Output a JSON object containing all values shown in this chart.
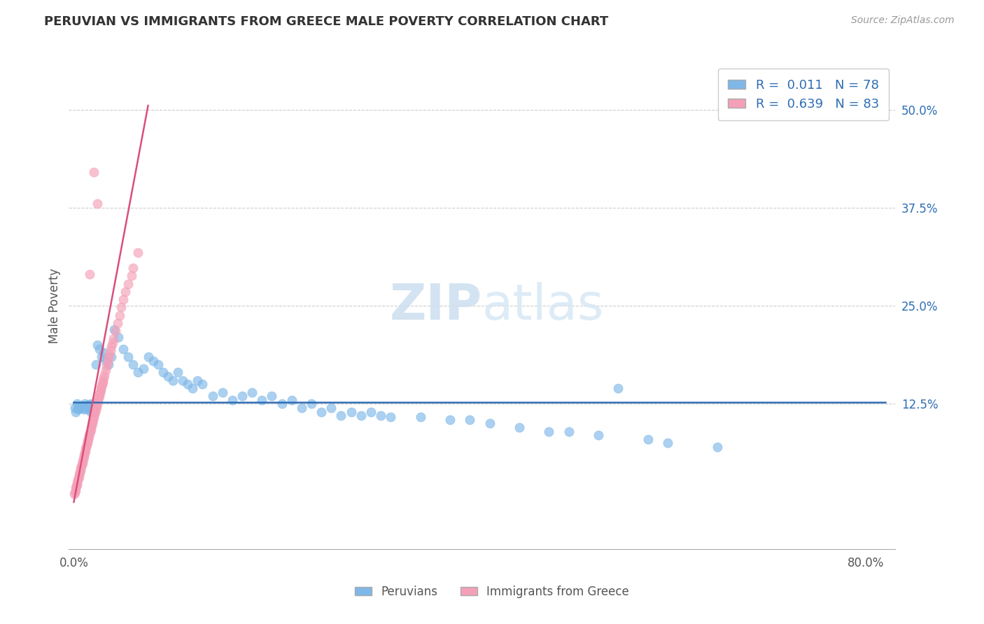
{
  "title": "PERUVIAN VS IMMIGRANTS FROM GREECE MALE POVERTY CORRELATION CHART",
  "source": "Source: ZipAtlas.com",
  "ylabel": "Male Poverty",
  "watermark_zip": "ZIP",
  "watermark_atlas": "atlas",
  "blue_R": 0.011,
  "blue_N": 78,
  "pink_R": 0.639,
  "pink_N": 83,
  "blue_color": "#7eb8e8",
  "pink_color": "#f4a0b8",
  "blue_line_color": "#2e6db4",
  "pink_line_color": "#d94f7a",
  "legend_label_blue": "Peruvians",
  "legend_label_pink": "Immigrants from Greece",
  "xlim": [
    -0.005,
    0.83
  ],
  "ylim": [
    -0.06,
    0.56
  ],
  "blue_x": [
    0.001,
    0.002,
    0.003,
    0.004,
    0.005,
    0.006,
    0.007,
    0.008,
    0.009,
    0.01,
    0.011,
    0.012,
    0.013,
    0.014,
    0.015,
    0.016,
    0.017,
    0.018,
    0.019,
    0.02,
    0.022,
    0.024,
    0.026,
    0.028,
    0.03,
    0.032,
    0.035,
    0.038,
    0.041,
    0.045,
    0.05,
    0.055,
    0.06,
    0.065,
    0.07,
    0.075,
    0.08,
    0.085,
    0.09,
    0.095,
    0.1,
    0.105,
    0.11,
    0.115,
    0.12,
    0.125,
    0.13,
    0.14,
    0.15,
    0.16,
    0.17,
    0.18,
    0.19,
    0.2,
    0.21,
    0.22,
    0.23,
    0.24,
    0.25,
    0.26,
    0.27,
    0.28,
    0.29,
    0.3,
    0.31,
    0.32,
    0.35,
    0.38,
    0.4,
    0.42,
    0.45,
    0.48,
    0.5,
    0.53,
    0.55,
    0.58,
    0.6,
    0.65
  ],
  "blue_y": [
    0.12,
    0.115,
    0.125,
    0.118,
    0.122,
    0.12,
    0.119,
    0.121,
    0.123,
    0.118,
    0.125,
    0.12,
    0.122,
    0.118,
    0.124,
    0.12,
    0.115,
    0.125,
    0.12,
    0.118,
    0.175,
    0.2,
    0.195,
    0.185,
    0.19,
    0.18,
    0.175,
    0.185,
    0.22,
    0.21,
    0.195,
    0.185,
    0.175,
    0.165,
    0.17,
    0.185,
    0.18,
    0.175,
    0.165,
    0.16,
    0.155,
    0.165,
    0.155,
    0.15,
    0.145,
    0.155,
    0.15,
    0.135,
    0.14,
    0.13,
    0.135,
    0.14,
    0.13,
    0.135,
    0.125,
    0.13,
    0.12,
    0.125,
    0.115,
    0.12,
    0.11,
    0.115,
    0.11,
    0.115,
    0.11,
    0.108,
    0.108,
    0.105,
    0.105,
    0.1,
    0.095,
    0.09,
    0.09,
    0.085,
    0.145,
    0.08,
    0.075,
    0.07
  ],
  "pink_x": [
    0.0005,
    0.001,
    0.0015,
    0.002,
    0.0025,
    0.003,
    0.0035,
    0.004,
    0.0045,
    0.005,
    0.0055,
    0.006,
    0.0065,
    0.007,
    0.0075,
    0.008,
    0.0085,
    0.009,
    0.0095,
    0.01,
    0.0105,
    0.011,
    0.0115,
    0.012,
    0.0125,
    0.013,
    0.0135,
    0.014,
    0.0145,
    0.015,
    0.0155,
    0.016,
    0.0165,
    0.017,
    0.0175,
    0.018,
    0.0185,
    0.019,
    0.0195,
    0.02,
    0.0205,
    0.021,
    0.0215,
    0.022,
    0.0225,
    0.023,
    0.0235,
    0.024,
    0.0245,
    0.025,
    0.0255,
    0.026,
    0.0265,
    0.027,
    0.0275,
    0.028,
    0.0285,
    0.029,
    0.0295,
    0.03,
    0.031,
    0.032,
    0.033,
    0.034,
    0.035,
    0.036,
    0.037,
    0.038,
    0.039,
    0.04,
    0.042,
    0.044,
    0.046,
    0.048,
    0.05,
    0.052,
    0.055,
    0.058,
    0.06,
    0.065,
    0.016,
    0.02,
    0.024
  ],
  "pink_y": [
    0.01,
    0.012,
    0.015,
    0.018,
    0.02,
    0.022,
    0.025,
    0.028,
    0.03,
    0.033,
    0.035,
    0.038,
    0.04,
    0.043,
    0.045,
    0.048,
    0.05,
    0.052,
    0.055,
    0.058,
    0.06,
    0.063,
    0.065,
    0.068,
    0.07,
    0.073,
    0.075,
    0.078,
    0.08,
    0.083,
    0.085,
    0.088,
    0.09,
    0.092,
    0.095,
    0.098,
    0.1,
    0.103,
    0.105,
    0.108,
    0.11,
    0.113,
    0.115,
    0.118,
    0.12,
    0.122,
    0.125,
    0.128,
    0.13,
    0.133,
    0.135,
    0.138,
    0.14,
    0.142,
    0.145,
    0.148,
    0.15,
    0.152,
    0.155,
    0.158,
    0.162,
    0.168,
    0.173,
    0.178,
    0.183,
    0.188,
    0.193,
    0.198,
    0.203,
    0.208,
    0.218,
    0.228,
    0.238,
    0.248,
    0.258,
    0.268,
    0.278,
    0.288,
    0.298,
    0.318,
    0.29,
    0.42,
    0.38
  ],
  "pink_line_x0": 0.0,
  "pink_line_y0": 0.0,
  "pink_line_x1": 0.075,
  "pink_line_y1": 0.505,
  "blue_line_y": 0.127
}
